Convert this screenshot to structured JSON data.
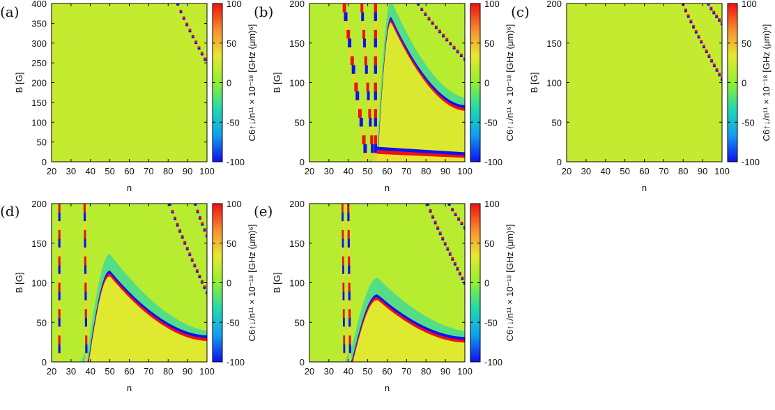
{
  "colorbar_label": "C6↑↓/n¹¹ × 10⁻¹⁸ [GHz (μm)⁶]",
  "colormap": [
    "#1010f0",
    "#10a0f0",
    "#20d8b0",
    "#90f030",
    "#e8e830",
    "#f89030",
    "#f01010"
  ],
  "chart_data": [
    {
      "type": "heatmap",
      "panel_label": "(a)",
      "xlabel": "n",
      "ylabel": "B [G]",
      "xlim": [
        20,
        100
      ],
      "ylim": [
        0,
        400
      ],
      "xticks": [
        "20",
        "30",
        "40",
        "50",
        "60",
        "70",
        "80",
        "90",
        "100"
      ],
      "yticks": [
        "0",
        "50",
        "100",
        "150",
        "200",
        "250",
        "300",
        "350",
        "400"
      ],
      "clim": [
        -100,
        100
      ],
      "cticks": [
        "100",
        "50",
        "0",
        "-50",
        "-100"
      ],
      "background_value": 20,
      "resonances": [
        {
          "kind": "hyperbola",
          "n_at_Bmax": 85,
          "n_at_Bref": 99,
          "B_ref": 260,
          "steps": 10
        }
      ],
      "lobes": [],
      "vertical_bands": []
    },
    {
      "type": "heatmap",
      "panel_label": "(b)",
      "xlabel": "n",
      "ylabel": "B [G]",
      "xlim": [
        20,
        100
      ],
      "ylim": [
        0,
        200
      ],
      "xticks": [
        "20",
        "30",
        "40",
        "50",
        "60",
        "70",
        "80",
        "90",
        "100"
      ],
      "yticks": [
        "0",
        "50",
        "100",
        "150",
        "200"
      ],
      "clim": [
        -100,
        100
      ],
      "cticks": [
        "100",
        "50",
        "0",
        "-50",
        "-100"
      ],
      "background_value": 15,
      "resonances": [
        {
          "kind": "hyperbola",
          "n_at_Bmax": 76,
          "n_at_Bref": 100,
          "B_ref": 130,
          "steps": 14
        }
      ],
      "lobes": [
        {
          "kind": "dome",
          "n_start": 55,
          "n_peak": 62,
          "B_peak": 180,
          "tail_B": 68,
          "inside_value": 28,
          "halo": true
        },
        {
          "kind": "low_band",
          "n_start": 54,
          "B_low": 15,
          "B_high": 8,
          "inside_value": 35
        }
      ],
      "vertical_bands": [
        {
          "n_top": 38,
          "n_bottom": 50,
          "width": 2.5
        },
        {
          "n_top": 47,
          "n_bottom": 53,
          "width": 2.0
        },
        {
          "n_top": 54,
          "n_bottom": 54,
          "width": 2.2
        }
      ]
    },
    {
      "type": "heatmap",
      "panel_label": "(c)",
      "xlabel": "n",
      "ylabel": "B [G]",
      "xlim": [
        20,
        100
      ],
      "ylim": [
        0,
        200
      ],
      "xticks": [
        "20",
        "30",
        "40",
        "50",
        "60",
        "70",
        "80",
        "90",
        "100"
      ],
      "yticks": [
        "0",
        "50",
        "100",
        "150",
        "200"
      ],
      "clim": [
        -100,
        100
      ],
      "cticks": [
        "100",
        "50",
        "0",
        "-50",
        "-100"
      ],
      "background_value": 20,
      "resonances": [
        {
          "kind": "hyperbola",
          "n_at_Bmax": 80,
          "n_at_Bref": 100,
          "B_ref": 105,
          "steps": 16
        },
        {
          "kind": "hyperbola",
          "n_at_Bmax": 93,
          "n_at_Bref": 100,
          "B_ref": 175,
          "steps": 6
        }
      ],
      "lobes": [],
      "vertical_bands": []
    },
    {
      "type": "heatmap",
      "panel_label": "(d)",
      "xlabel": "n",
      "ylabel": "B [G]",
      "xlim": [
        20,
        100
      ],
      "ylim": [
        0,
        200
      ],
      "xticks": [
        "20",
        "30",
        "40",
        "50",
        "60",
        "70",
        "80",
        "90",
        "100"
      ],
      "yticks": [
        "0",
        "50",
        "100",
        "150",
        "200"
      ],
      "clim": [
        -100,
        100
      ],
      "cticks": [
        "100",
        "50",
        "0",
        "-50",
        "-100"
      ],
      "background_value": 15,
      "resonances": [
        {
          "kind": "hyperbola",
          "n_at_Bmax": 81,
          "n_at_Bref": 100,
          "B_ref": 88,
          "steps": 16
        },
        {
          "kind": "hyperbola",
          "n_at_Bmax": 94,
          "n_at_Bref": 100,
          "B_ref": 160,
          "steps": 6
        }
      ],
      "lobes": [
        {
          "kind": "dome",
          "n_start": 39,
          "n_peak": 50,
          "B_peak": 112,
          "tail_B": 30,
          "inside_value": 30,
          "halo": true
        }
      ],
      "vertical_bands": [
        {
          "n_top": 24,
          "n_bottom": 24,
          "width": 1.6
        },
        {
          "n_top": 37,
          "n_bottom": 38,
          "width": 1.6
        }
      ]
    },
    {
      "type": "heatmap",
      "panel_label": "(e)",
      "xlabel": "n",
      "ylabel": "B [G]",
      "xlim": [
        20,
        100
      ],
      "ylim": [
        0,
        200
      ],
      "xticks": [
        "20",
        "30",
        "40",
        "50",
        "60",
        "70",
        "80",
        "90",
        "100"
      ],
      "yticks": [
        "0",
        "50",
        "100",
        "150",
        "200"
      ],
      "clim": [
        -100,
        100
      ],
      "cticks": [
        "100",
        "50",
        "0",
        "-50",
        "-100"
      ],
      "background_value": 15,
      "resonances": [
        {
          "kind": "hyperbola",
          "n_at_Bmax": 81,
          "n_at_Bref": 100,
          "B_ref": 100,
          "steps": 16
        },
        {
          "kind": "hyperbola",
          "n_at_Bmax": 92,
          "n_at_Bref": 100,
          "B_ref": 170,
          "steps": 6
        }
      ],
      "lobes": [
        {
          "kind": "dome",
          "n_start": 42,
          "n_peak": 55,
          "B_peak": 82,
          "tail_B": 28,
          "inside_value": 30,
          "halo": true
        }
      ],
      "vertical_bands": [
        {
          "n_top": 37,
          "n_bottom": 38,
          "width": 1.4
        },
        {
          "n_top": 40,
          "n_bottom": 41,
          "width": 1.6
        }
      ]
    }
  ]
}
